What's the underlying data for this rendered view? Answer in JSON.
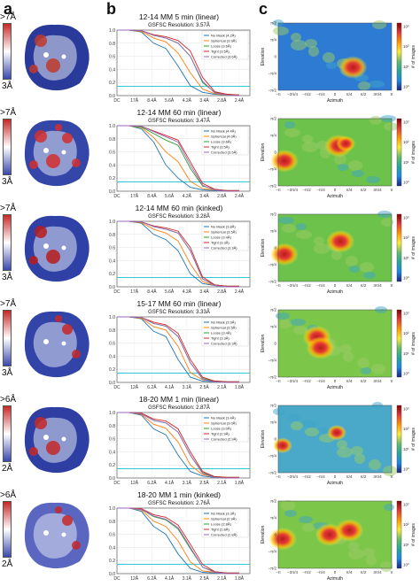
{
  "panel_labels": {
    "a": "a",
    "b": "b",
    "c": "c"
  },
  "colors": {
    "no_mask": "#1f77b4",
    "spherical": "#ff7f0e",
    "loose": "#2ca02c",
    "tight": "#d62728",
    "corrected": "#9467bd",
    "threshold": "#17becf"
  },
  "legend_labels": [
    "No Mask",
    "Spherical",
    "Loose",
    "Tight",
    "Corrected"
  ],
  "fsc_x_ticks": [
    [
      "DC",
      "17Å",
      "8.4Å",
      "5.6Å",
      "4.2Å",
      "3.4Å",
      "2.8Å",
      "2.4Å"
    ],
    [
      "DC",
      "17Å",
      "8.4Å",
      "5.6Å",
      "4.2Å",
      "3.4Å",
      "2.8Å",
      "2.4Å"
    ],
    [
      "DC",
      "17Å",
      "8.4Å",
      "5.6Å",
      "4.2Å",
      "3.4Å",
      "2.8Å",
      "2.4Å"
    ],
    [
      "DC",
      "12Å",
      "6.2Å",
      "4.1Å",
      "3.1Å",
      "2.5Å",
      "2.1Å",
      "1.8Å"
    ],
    [
      "DC",
      "12Å",
      "6.2Å",
      "4.1Å",
      "3.1Å",
      "2.5Å",
      "2.1Å",
      "1.8Å"
    ],
    [
      "DC",
      "12Å",
      "6.2Å",
      "4.1Å",
      "3.1Å",
      "2.5Å",
      "2.1Å",
      "1.8Å"
    ]
  ],
  "fsc_y_ticks": [
    "1.0",
    "0.8",
    "0.6",
    "0.4",
    "0.2",
    "0.0"
  ],
  "map_x_ticks": [
    "−π",
    "−3π/4",
    "−π/2",
    "−π/4",
    "0",
    "π/4",
    "π/2",
    "3π/4",
    "π"
  ],
  "map_y_ticks": [
    "π/2",
    "π/4",
    "0",
    "−π/4",
    "−π/2"
  ],
  "map_xlabel": "Azimuth",
  "map_ylabel": "Elevation",
  "cbar_label": "# of images",
  "rows": [
    {
      "title": "12-14 MM 5 min (linear)",
      "gsfsc": "GSFSC Resolution: 3.57Å",
      "res_top": ">7Å",
      "res_bot": "3Å",
      "cbar_ticks": [
        "10³",
        "10²",
        "10¹",
        "10⁰"
      ],
      "legend": [
        "No Mask (4.2Å)",
        "Spherical (3.9Å)",
        "Loose (3.6Å)",
        "Tight (3.5Å)",
        "Corrected (3.6Å)"
      ]
    },
    {
      "title": "12-14 MM 60 min (linear)",
      "gsfsc": "GSFSC Resolution: 3.47Å",
      "res_top": ">7Å",
      "res_bot": "3Å",
      "cbar_ticks": [
        "10³",
        "10²",
        "10¹",
        "10⁰"
      ],
      "legend": [
        "No Mask (4.4Å)",
        "Spherical (4.0Å)",
        "Loose (3.6Å)",
        "Tight (3.5Å)",
        "Corrected (3.5Å)"
      ]
    },
    {
      "title": "12-14 MM 60 min (kinked)",
      "gsfsc": "GSFSC Resolution: 3.28Å",
      "res_top": ">7Å",
      "res_bot": "3Å",
      "cbar_ticks": [
        "10³",
        "10²",
        "10¹",
        "10⁰"
      ],
      "legend": [
        "No Mask (3.8Å)",
        "Spherical (3.5Å)",
        "Loose (3.4Å)",
        "Tight (3.3Å)",
        "Corrected (3.3Å)"
      ]
    },
    {
      "title": "15-17 MM 60 min (linear)",
      "gsfsc": "GSFSC Resolution: 3.33Å",
      "res_top": ">7Å",
      "res_bot": "3Å",
      "cbar_ticks": [
        "10³",
        "10²",
        "10¹",
        "10⁰"
      ],
      "legend": [
        "No Mask (3.9Å)",
        "Spherical (3.5Å)",
        "Loose (3.4Å)",
        "Tight (3.3Å)",
        "Corrected (3.3Å)"
      ]
    },
    {
      "title": "18-20 MM 1 min (linear)",
      "gsfsc": "GSFSC Resolution: 2.87Å",
      "res_top": ">6Å",
      "res_bot": "2Å",
      "cbar_ticks": [
        "10³",
        "10²",
        "10¹",
        "10⁰"
      ],
      "legend": [
        "No Mask (3.4Å)",
        "Spherical (3.0Å)",
        "Loose (3.0Å)",
        "Tight (2.9Å)",
        "Corrected (2.9Å)"
      ]
    },
    {
      "title": "18-20 MM 1 min (kinked)",
      "gsfsc": "GSFSC Resolution: 2.76Å",
      "res_top": ">6Å",
      "res_bot": "2Å",
      "cbar_ticks": [
        "10³",
        "10²",
        "10¹",
        "10⁰"
      ],
      "legend": [
        "No Mask (3.3Å)",
        "Spherical (2.9Å)",
        "Loose (2.8Å)",
        "Tight (2.8Å)",
        "Corrected (2.8Å)"
      ]
    }
  ],
  "chart_data": [
    {
      "type": "line",
      "title": "12-14 MM 5 min (linear)",
      "subtitle": "GSFSC Resolution: 3.57Å",
      "ylim": [
        0,
        1
      ],
      "x": [
        0,
        0.1,
        0.2,
        0.3,
        0.4,
        0.5,
        0.6,
        0.7,
        0.8,
        0.9,
        1.0
      ],
      "series": [
        {
          "name": "No Mask",
          "values": [
            1,
            1,
            0.97,
            0.8,
            0.72,
            0.45,
            0.15,
            0.05,
            0.02,
            0.01,
            0.01
          ]
        },
        {
          "name": "Spherical",
          "values": [
            1,
            1,
            0.98,
            0.88,
            0.82,
            0.65,
            0.35,
            0.1,
            0.03,
            0.01,
            0.01
          ]
        },
        {
          "name": "Loose",
          "values": [
            1,
            1,
            0.99,
            0.92,
            0.88,
            0.8,
            0.6,
            0.2,
            0.05,
            0.02,
            0.01
          ]
        },
        {
          "name": "Tight",
          "values": [
            1,
            1,
            0.99,
            0.93,
            0.9,
            0.84,
            0.68,
            0.28,
            0.06,
            0.02,
            0.01
          ]
        },
        {
          "name": "Corrected",
          "values": [
            1,
            1,
            0.99,
            0.92,
            0.88,
            0.8,
            0.6,
            0.22,
            0.04,
            0.01,
            0.0
          ]
        }
      ]
    },
    {
      "type": "line",
      "title": "12-14 MM 60 min (linear)",
      "subtitle": "GSFSC Resolution: 3.47Å",
      "ylim": [
        0,
        1
      ],
      "x": [
        0,
        0.1,
        0.2,
        0.3,
        0.4,
        0.5,
        0.6,
        0.7,
        0.8,
        0.9,
        1.0
      ],
      "series": [
        {
          "name": "No Mask",
          "values": [
            1,
            1,
            0.95,
            0.75,
            0.4,
            0.2,
            0.06,
            0.02,
            0.01,
            0.01,
            0.01
          ]
        },
        {
          "name": "Spherical",
          "values": [
            1,
            1,
            0.97,
            0.82,
            0.6,
            0.45,
            0.15,
            0.04,
            0.02,
            0.01,
            0.01
          ]
        },
        {
          "name": "Loose",
          "values": [
            1,
            1,
            0.98,
            0.88,
            0.78,
            0.7,
            0.35,
            0.08,
            0.03,
            0.01,
            0.01
          ]
        },
        {
          "name": "Tight",
          "values": [
            1,
            1,
            0.99,
            0.92,
            0.85,
            0.78,
            0.45,
            0.12,
            0.03,
            0.01,
            0.01
          ]
        },
        {
          "name": "Corrected",
          "values": [
            1,
            1,
            0.99,
            0.91,
            0.83,
            0.75,
            0.4,
            0.09,
            0.02,
            0.0,
            0.0
          ]
        }
      ]
    },
    {
      "type": "line",
      "title": "12-14 MM 60 min (kinked)",
      "subtitle": "GSFSC Resolution: 3.28Å",
      "ylim": [
        0,
        1
      ],
      "x": [
        0,
        0.1,
        0.2,
        0.3,
        0.4,
        0.5,
        0.6,
        0.7,
        0.8,
        0.9,
        1.0
      ],
      "series": [
        {
          "name": "No Mask",
          "values": [
            1,
            1,
            0.97,
            0.8,
            0.72,
            0.55,
            0.2,
            0.05,
            0.02,
            0.01,
            0.01
          ]
        },
        {
          "name": "Spherical",
          "values": [
            1,
            1,
            0.98,
            0.88,
            0.82,
            0.7,
            0.35,
            0.08,
            0.02,
            0.01,
            0.01
          ]
        },
        {
          "name": "Loose",
          "values": [
            1,
            1,
            0.99,
            0.92,
            0.88,
            0.82,
            0.55,
            0.12,
            0.03,
            0.01,
            0.01
          ]
        },
        {
          "name": "Tight",
          "values": [
            1,
            1,
            0.99,
            0.93,
            0.9,
            0.85,
            0.6,
            0.15,
            0.03,
            0.01,
            0.01
          ]
        },
        {
          "name": "Corrected",
          "values": [
            1,
            1,
            0.99,
            0.92,
            0.88,
            0.82,
            0.55,
            0.12,
            0.02,
            0.0,
            0.0
          ]
        }
      ]
    },
    {
      "type": "line",
      "title": "15-17 MM 60 min (linear)",
      "subtitle": "GSFSC Resolution: 3.33Å",
      "ylim": [
        0,
        1
      ],
      "x": [
        0,
        0.1,
        0.2,
        0.3,
        0.4,
        0.5,
        0.6,
        0.7,
        0.8,
        0.9,
        1.0
      ],
      "series": [
        {
          "name": "No Mask",
          "values": [
            1,
            1,
            0.97,
            0.78,
            0.7,
            0.35,
            0.08,
            0.02,
            0.01,
            0.01,
            0.01
          ]
        },
        {
          "name": "Spherical",
          "values": [
            1,
            1,
            0.98,
            0.85,
            0.8,
            0.55,
            0.15,
            0.04,
            0.02,
            0.01,
            0.01
          ]
        },
        {
          "name": "Loose",
          "values": [
            1,
            1,
            0.99,
            0.9,
            0.86,
            0.7,
            0.3,
            0.06,
            0.02,
            0.01,
            0.01
          ]
        },
        {
          "name": "Tight",
          "values": [
            1,
            1,
            0.99,
            0.92,
            0.88,
            0.75,
            0.35,
            0.08,
            0.02,
            0.01,
            0.01
          ]
        },
        {
          "name": "Corrected",
          "values": [
            1,
            1,
            0.99,
            0.9,
            0.86,
            0.7,
            0.3,
            0.05,
            0.01,
            0.0,
            0.0
          ]
        }
      ]
    },
    {
      "type": "line",
      "title": "18-20 MM 1 min (linear)",
      "subtitle": "GSFSC Resolution: 2.87Å",
      "ylim": [
        0,
        1
      ],
      "x": [
        0,
        0.1,
        0.2,
        0.3,
        0.4,
        0.5,
        0.6,
        0.7,
        0.8,
        0.9,
        1.0
      ],
      "series": [
        {
          "name": "No Mask",
          "values": [
            1,
            1,
            0.96,
            0.75,
            0.66,
            0.35,
            0.1,
            0.03,
            0.01,
            0.01,
            0.01
          ]
        },
        {
          "name": "Spherical",
          "values": [
            1,
            1,
            0.97,
            0.82,
            0.76,
            0.55,
            0.2,
            0.05,
            0.02,
            0.01,
            0.01
          ]
        },
        {
          "name": "Loose",
          "values": [
            1,
            1,
            0.98,
            0.88,
            0.84,
            0.7,
            0.35,
            0.08,
            0.02,
            0.01,
            0.01
          ]
        },
        {
          "name": "Tight",
          "values": [
            1,
            1,
            0.99,
            0.9,
            0.87,
            0.75,
            0.4,
            0.1,
            0.02,
            0.01,
            0.01
          ]
        },
        {
          "name": "Corrected",
          "values": [
            1,
            1,
            0.98,
            0.88,
            0.84,
            0.7,
            0.35,
            0.07,
            0.01,
            0.0,
            0.0
          ]
        }
      ]
    },
    {
      "type": "line",
      "title": "18-20 MM 1 min (kinked)",
      "subtitle": "GSFSC Resolution: 2.76Å",
      "ylim": [
        0,
        1
      ],
      "x": [
        0,
        0.1,
        0.2,
        0.3,
        0.4,
        0.5,
        0.6,
        0.7,
        0.8,
        0.9,
        1.0
      ],
      "series": [
        {
          "name": "No Mask",
          "values": [
            1,
            1,
            0.95,
            0.72,
            0.6,
            0.3,
            0.08,
            0.02,
            0.01,
            0.01,
            0.01
          ]
        },
        {
          "name": "Spherical",
          "values": [
            1,
            1,
            0.97,
            0.8,
            0.72,
            0.5,
            0.18,
            0.04,
            0.02,
            0.01,
            0.01
          ]
        },
        {
          "name": "Loose",
          "values": [
            1,
            1,
            0.98,
            0.87,
            0.82,
            0.68,
            0.38,
            0.1,
            0.03,
            0.01,
            0.01
          ]
        },
        {
          "name": "Tight",
          "values": [
            1,
            1,
            0.99,
            0.9,
            0.86,
            0.74,
            0.45,
            0.14,
            0.03,
            0.01,
            0.01
          ]
        },
        {
          "name": "Corrected",
          "values": [
            1,
            1,
            0.98,
            0.88,
            0.83,
            0.7,
            0.4,
            0.1,
            0.02,
            0.0,
            0.0
          ]
        }
      ]
    },
    {
      "type": "heatmap",
      "title": "",
      "xlabel": "Azimuth",
      "ylabel": "Elevation",
      "colorbar": "# of images",
      "log_scale": true,
      "hotspots": [
        {
          "azimuth": 1.0,
          "elevation": -0.5,
          "level": "high"
        }
      ]
    },
    {
      "type": "heatmap",
      "title": "",
      "xlabel": "Azimuth",
      "ylabel": "Elevation",
      "colorbar": "# of images",
      "log_scale": true,
      "hotspots": [
        {
          "azimuth": -2.8,
          "elevation": -0.4,
          "level": "high"
        },
        {
          "azimuth": 0.2,
          "elevation": 0.3,
          "level": "high"
        },
        {
          "azimuth": 0.6,
          "elevation": 0.4,
          "level": "medium"
        }
      ]
    },
    {
      "type": "heatmap",
      "title": "",
      "xlabel": "Azimuth",
      "ylabel": "Elevation",
      "colorbar": "# of images",
      "log_scale": true,
      "hotspots": [
        {
          "azimuth": -2.8,
          "elevation": -0.3,
          "level": "high"
        },
        {
          "azimuth": 0.3,
          "elevation": 0.3,
          "level": "high"
        }
      ]
    },
    {
      "type": "heatmap",
      "title": "",
      "xlabel": "Azimuth",
      "ylabel": "Elevation",
      "colorbar": "# of images",
      "log_scale": true,
      "hotspots": [
        {
          "azimuth": -1.0,
          "elevation": 0.3,
          "level": "high"
        },
        {
          "azimuth": -0.8,
          "elevation": -0.2,
          "level": "high"
        }
      ]
    },
    {
      "type": "heatmap",
      "title": "",
      "xlabel": "Azimuth",
      "ylabel": "Elevation",
      "colorbar": "# of images",
      "log_scale": true,
      "hotspots": [
        {
          "azimuth": -2.9,
          "elevation": -0.3,
          "level": "medium"
        },
        {
          "azimuth": 0.1,
          "elevation": 0.3,
          "level": "medium"
        }
      ]
    },
    {
      "type": "heatmap",
      "title": "",
      "xlabel": "Azimuth",
      "ylabel": "Elevation",
      "colorbar": "# of images",
      "log_scale": true,
      "hotspots": [
        {
          "azimuth": -2.9,
          "elevation": -0.2,
          "level": "high"
        },
        {
          "azimuth": -0.3,
          "elevation": 0.0,
          "level": "high"
        },
        {
          "azimuth": 0.8,
          "elevation": 0.2,
          "level": "high"
        }
      ]
    }
  ]
}
